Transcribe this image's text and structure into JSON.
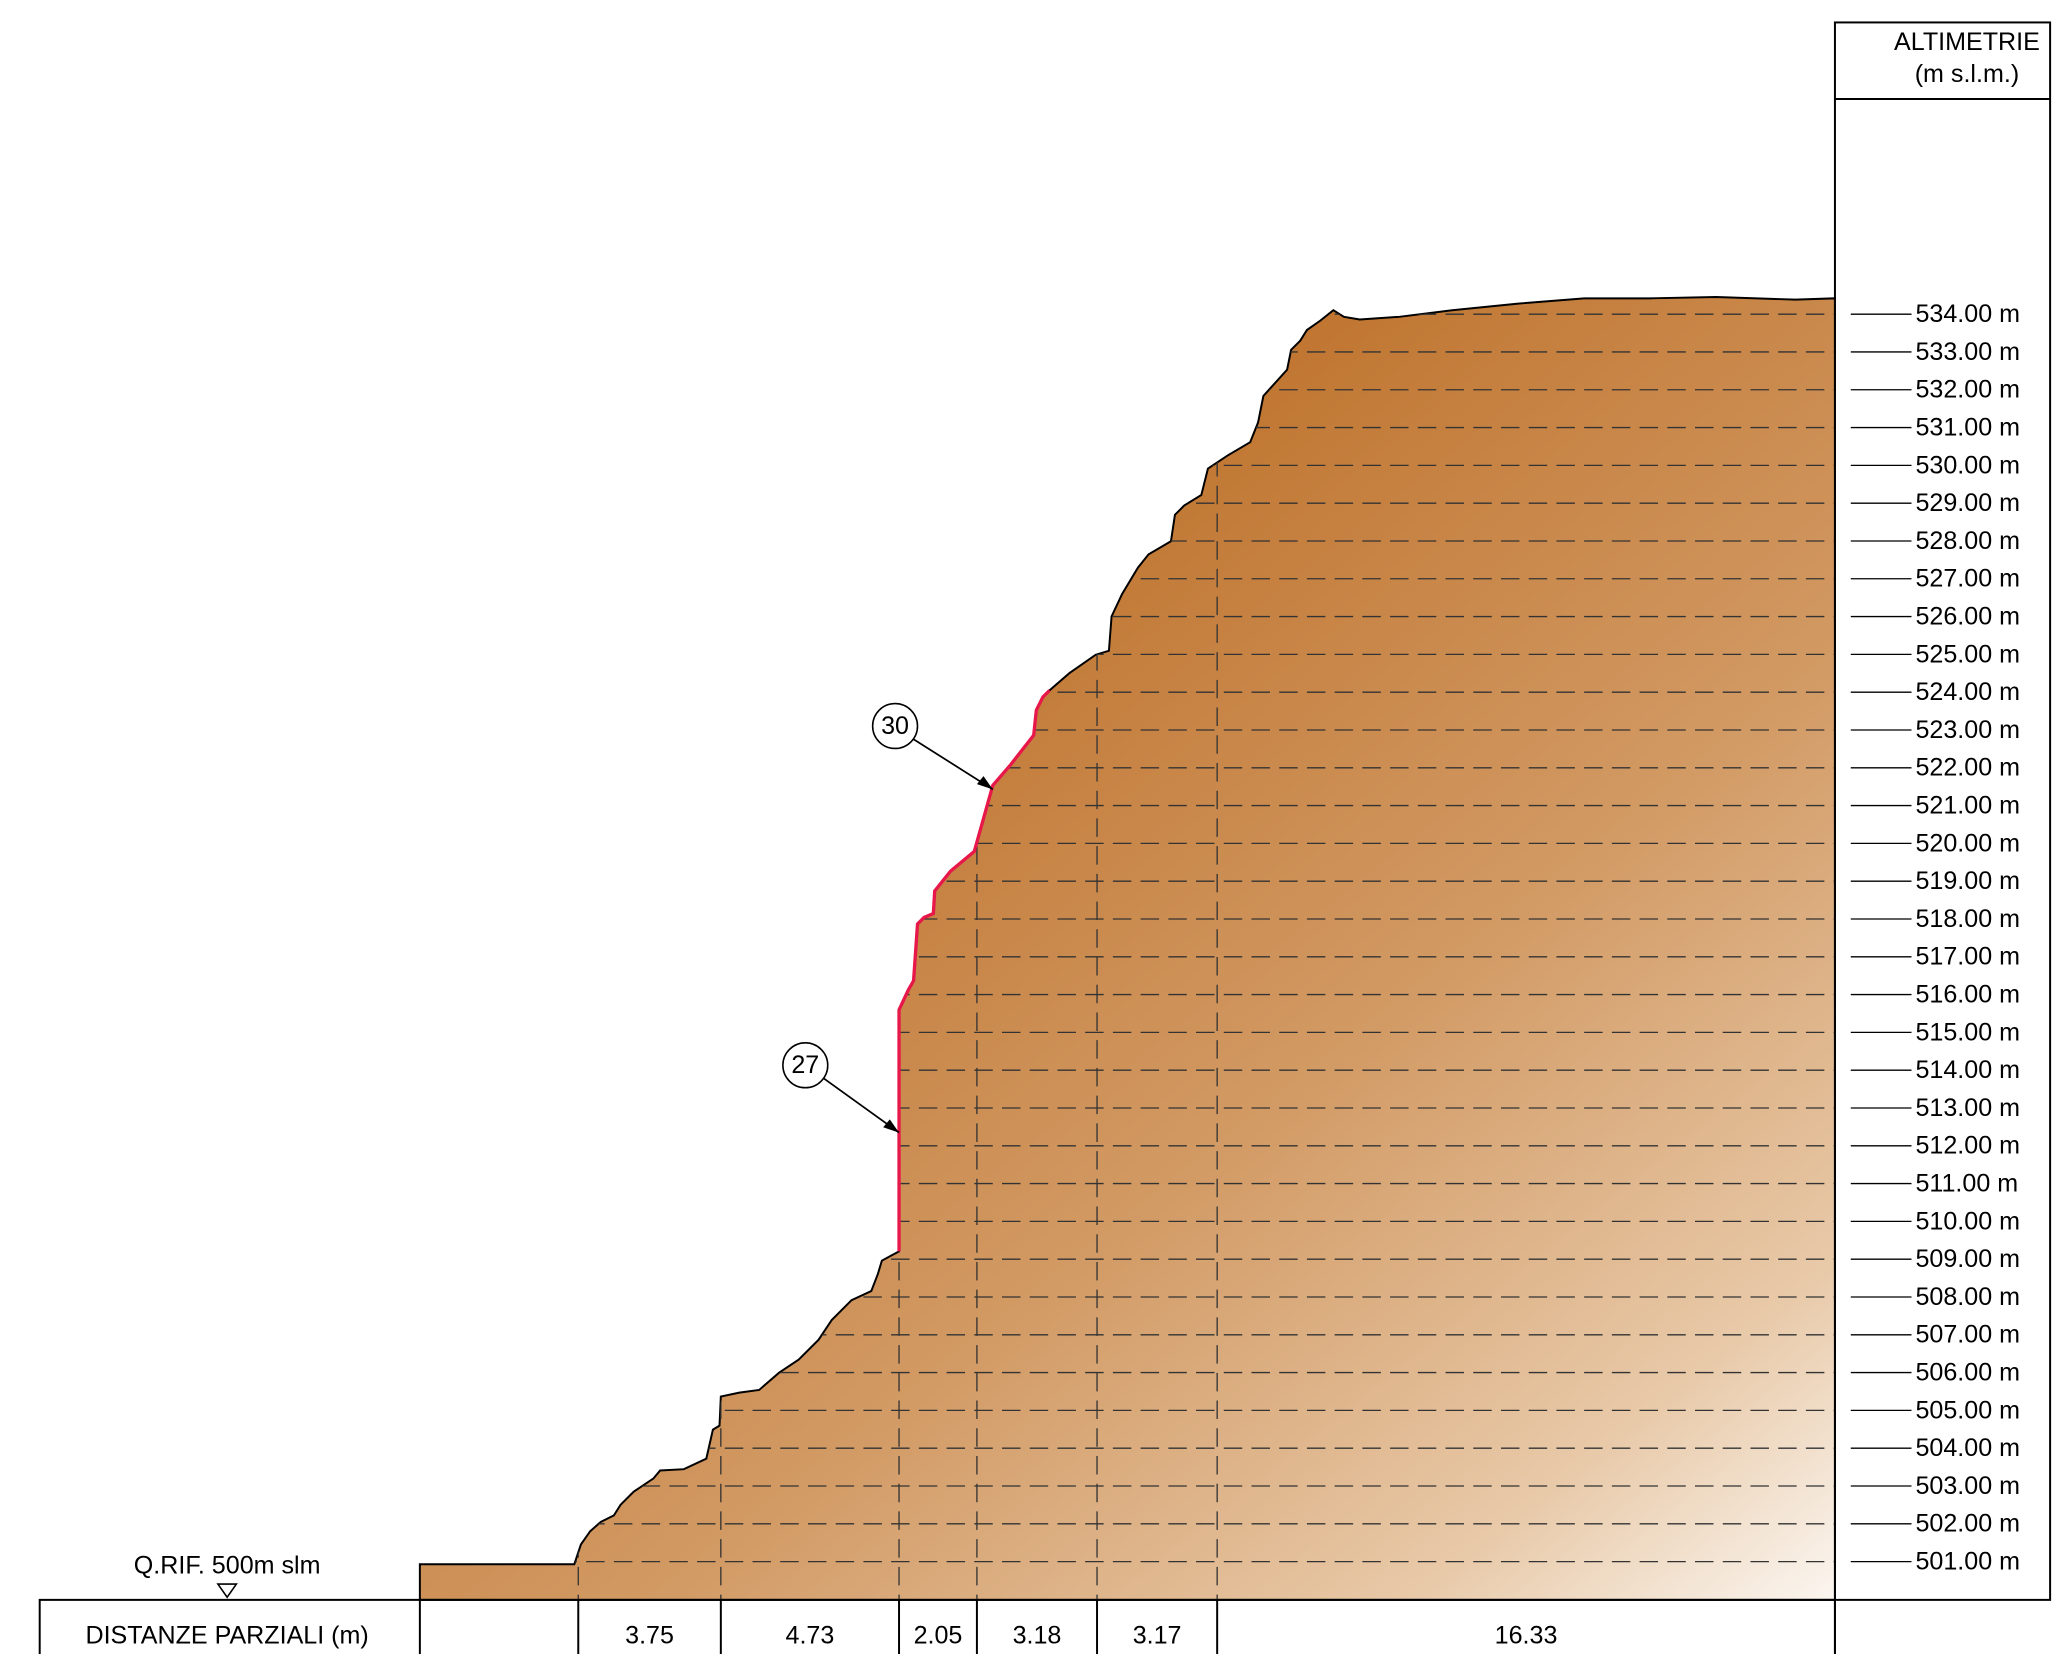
{
  "header": {
    "title": "ALTIMETRIE",
    "unit": "(m s.l.m.)"
  },
  "elevations": [
    "534.00 m",
    "533.00 m",
    "532.00 m",
    "531.00 m",
    "530.00 m",
    "529.00 m",
    "528.00 m",
    "527.00 m",
    "526.00 m",
    "525.00 m",
    "524.00 m",
    "523.00 m",
    "522.00 m",
    "521.00 m",
    "520.00 m",
    "519.00 m",
    "518.00 m",
    "517.00 m",
    "516.00 m",
    "515.00 m",
    "514.00 m",
    "513.00 m",
    "512.00 m",
    "511.00 m",
    "510.00 m",
    "509.00 m",
    "508.00 m",
    "507.00 m",
    "506.00 m",
    "505.00 m",
    "504.00 m",
    "503.00 m",
    "502.00 m",
    "501.00 m"
  ],
  "reference": "Q.RIF. 500m slm",
  "distances": {
    "label": "DISTANZE PARZIALI (m)",
    "values": [
      "3.75",
      "4.73",
      "2.05",
      "3.18",
      "3.17",
      "16.33"
    ]
  },
  "callouts": [
    "30",
    "27"
  ]
}
